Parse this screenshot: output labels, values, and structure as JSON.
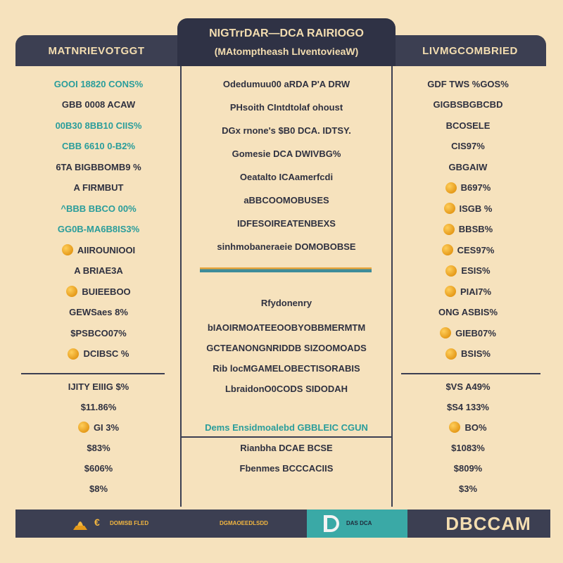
{
  "header": {
    "left_title": "MATNRIEVOTGGT",
    "center_title": "NIGTrrDAR—DCA RAIRIOGO",
    "center_subtitle": "(MAtomptheash LIventovieaW)",
    "right_title": "LIVMGCOMBRIED"
  },
  "left_column": {
    "rows": [
      {
        "text": "GOOI 18820 CONS%",
        "style": "mix"
      },
      {
        "text": "GBB 0008 ACAW",
        "style": "plain"
      },
      {
        "text": "00B30 8BB10 CIIS%",
        "style": "teal"
      },
      {
        "text": "CBB 6610 0-B2%",
        "style": "teal"
      },
      {
        "text": "6TA BIGBBOMB9 %",
        "style": "plain"
      },
      {
        "text": "A FIRMBUT",
        "style": "plain"
      },
      {
        "text": "^BBB BBCO 00%",
        "style": "mix"
      },
      {
        "text": "GG0B-MA6B8IS3%",
        "style": "teal"
      },
      {
        "text": "AIIROUNIOOI",
        "style": "coin"
      },
      {
        "text": "A BRIAE3A",
        "style": "plain"
      },
      {
        "text": "BUIEEBOO",
        "style": "coin"
      },
      {
        "text": "GEWSaes 8%",
        "style": "plain"
      },
      {
        "text": "$PSBCO07%",
        "style": "plain"
      },
      {
        "text": "DCIBSC %",
        "style": "coin"
      }
    ],
    "totals": [
      {
        "text": "IJITY EIIIG $%",
        "coin": false
      },
      {
        "text": "$11.86%",
        "coin": false
      },
      {
        "text": "GI 3%",
        "coin": true
      },
      {
        "text": "$83%",
        "coin": false
      },
      {
        "text": "$606%",
        "coin": false
      },
      {
        "text": "$8%",
        "coin": false
      }
    ]
  },
  "center_column": {
    "top_rows": [
      "Odedumuu00 aRDA P'A DRW",
      "PHsoith CIntdtolaf ohoust",
      "DGx rnone's $B0 DCA. IDTSY.",
      "Gomesie DCA DWIVBG%",
      "Oeatalto ICAamerfcdi",
      "aBBCOOMOBUSES",
      "IDFESOIREATENBEXS",
      "sinhmobaneraeie DOMOBOBSE"
    ],
    "section_title": "Rfydonenry",
    "bottom_rows": [
      "bIAOIRMOATEEOOBYOBBMERMTM",
      "GCTEANONGNRIDDB SIZOOMOADS",
      "Rib locMGAMELOBECTISORABIS",
      "LbraidonO0CODS SIDODAH"
    ],
    "footer_rows": [
      "Dems Ensidmoalebd GBBLEIC CGUN",
      "Rianbha DCAE BCSE",
      "Fbenmes BCCCACIIS"
    ]
  },
  "right_column": {
    "rows": [
      {
        "text": "GDF TWS %GOS%",
        "coin": false
      },
      {
        "text": "GIGBSBGBCBD",
        "coin": false
      },
      {
        "text": "BCOSELE",
        "coin": false
      },
      {
        "text": "CIS97%",
        "coin": false
      },
      {
        "text": "GBGAIW",
        "coin": false
      },
      {
        "text": "B697%",
        "coin": true
      },
      {
        "text": "ISGB %",
        "coin": true
      },
      {
        "text": "BBSB%",
        "coin": true
      },
      {
        "text": "CES97%",
        "coin": true
      },
      {
        "text": "ESIS%",
        "coin": true
      },
      {
        "text": "PIAI7%",
        "coin": true
      },
      {
        "text": "ONG ASBIS%",
        "coin": false
      },
      {
        "text": "GIEB07%",
        "coin": true
      },
      {
        "text": "BSIS%",
        "coin": true
      }
    ],
    "totals": [
      {
        "text": "$VS A49%",
        "coin": false
      },
      {
        "text": "$S4 133%",
        "coin": false
      },
      {
        "text": "BO%",
        "coin": true
      },
      {
        "text": "$1083%",
        "coin": false
      },
      {
        "text": "$809%",
        "coin": false
      },
      {
        "text": "$3%",
        "coin": false
      }
    ]
  },
  "footer": {
    "left_text": "DOMISB FLED",
    "center_text": "DGMAOEEDLSDD",
    "teal_text": "DAS DCA",
    "brand": "DBCCAM"
  },
  "colors": {
    "background": "#f6e2bd",
    "header": "#3c3f52",
    "teal": "#2a9d9b",
    "orange": "#e59a1a"
  }
}
